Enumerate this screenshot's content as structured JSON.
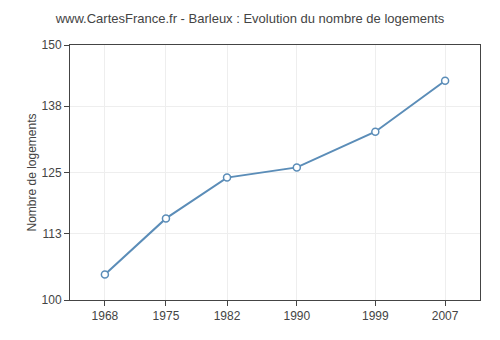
{
  "chart_data": {
    "type": "line",
    "title": "www.CartesFrance.fr - Barleux : Evolution du nombre de logements",
    "ylabel": "Nombre de logements",
    "x": [
      1968,
      1975,
      1982,
      1990,
      1999,
      2007
    ],
    "values": [
      105,
      116,
      124,
      126,
      133,
      143
    ],
    "xlim": [
      1964,
      2011
    ],
    "xticks": [
      1968,
      1975,
      1982,
      1990,
      1999,
      2007
    ],
    "ylim": [
      100,
      150
    ],
    "yticks": [
      100,
      113,
      125,
      138,
      150
    ],
    "color": "#5b8db8",
    "marker": "o",
    "grid": true
  }
}
